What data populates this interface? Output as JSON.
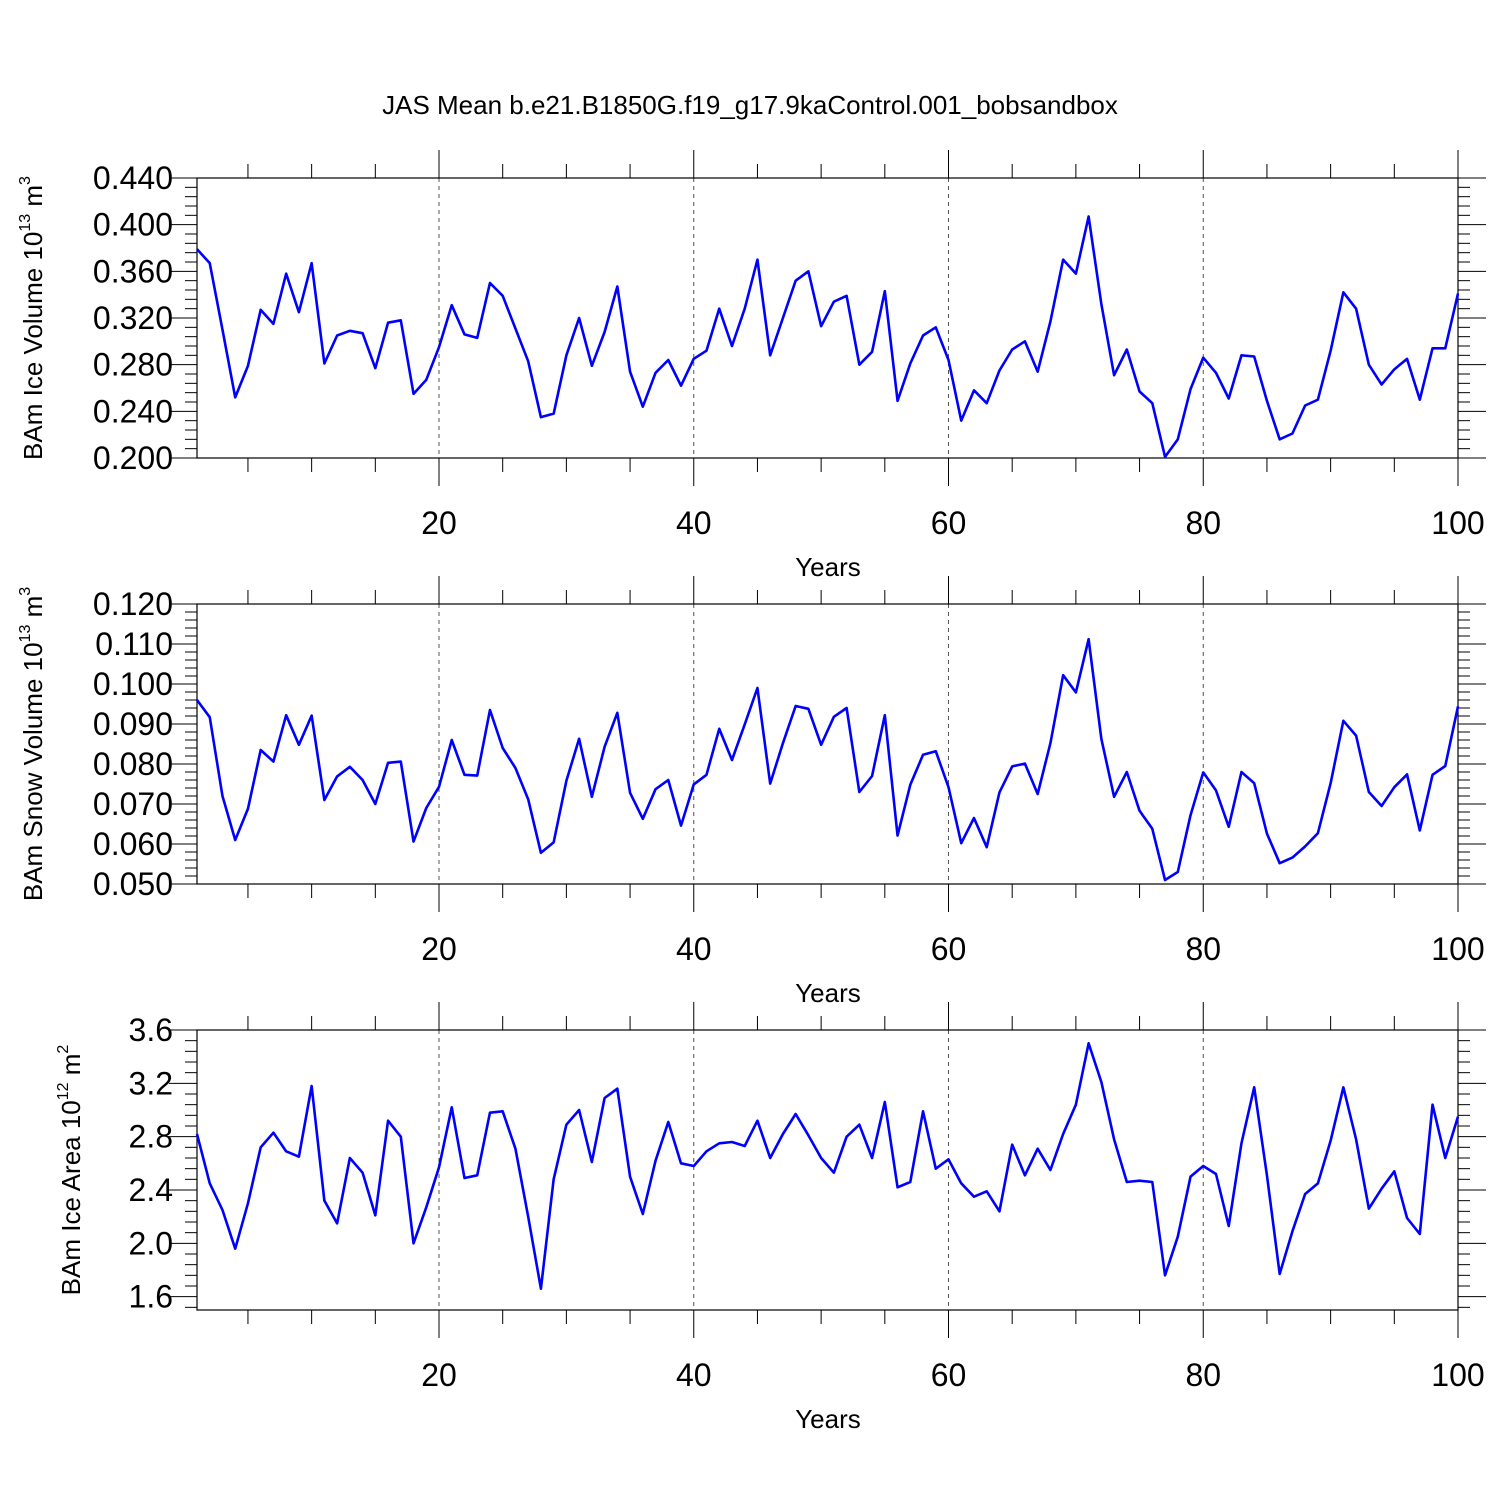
{
  "title": "JAS Mean b.e21.B1850G.f19_g17.9kaControl.001_bobsandbox",
  "colors": {
    "line": "#0000ff",
    "axis": "#000000",
    "grid": "#555555"
  },
  "chart_data": [
    {
      "type": "line",
      "ylabel": {
        "text": "BAm Ice Volume 10",
        "exp": "13",
        "unit": " m",
        "unit_exp": "3"
      },
      "xlabel": "Years",
      "xlim": [
        1,
        100
      ],
      "x_ticks": [
        "20",
        "40",
        "60",
        "80",
        "100"
      ],
      "ylim": [
        0.2,
        0.44
      ],
      "y_ticks": [
        "0.200",
        "0.240",
        "0.280",
        "0.320",
        "0.360",
        "0.400",
        "0.440"
      ],
      "grid": "vertical dashed",
      "series": [
        {
          "name": "BAm Ice Volume",
          "values": [
            0.379,
            0.367,
            0.31,
            0.252,
            0.279,
            0.327,
            0.315,
            0.358,
            0.325,
            0.367,
            0.281,
            0.305,
            0.309,
            0.307,
            0.277,
            0.316,
            0.318,
            0.255,
            0.267,
            0.295,
            0.331,
            0.306,
            0.303,
            0.35,
            0.339,
            0.311,
            0.283,
            0.235,
            0.238,
            0.288,
            0.32,
            0.279,
            0.308,
            0.347,
            0.274,
            0.244,
            0.273,
            0.284,
            0.262,
            0.285,
            0.292,
            0.328,
            0.296,
            0.328,
            0.37,
            0.288,
            0.32,
            0.352,
            0.36,
            0.313,
            0.334,
            0.339,
            0.28,
            0.291,
            0.343,
            0.249,
            0.281,
            0.305,
            0.312,
            0.284,
            0.232,
            0.258,
            0.247,
            0.275,
            0.293,
            0.3,
            0.274,
            0.317,
            0.37,
            0.358,
            0.407,
            0.332,
            0.271,
            0.293,
            0.257,
            0.247,
            0.201,
            0.216,
            0.259,
            0.286,
            0.273,
            0.251,
            0.288,
            0.287,
            0.249,
            0.216,
            0.221,
            0.245,
            0.25,
            0.292,
            0.342,
            0.328,
            0.28,
            0.263,
            0.276,
            0.285,
            0.25,
            0.294,
            0.294,
            0.341
          ]
        }
      ]
    },
    {
      "type": "line",
      "ylabel": {
        "text": "BAm Snow Volume 10",
        "exp": "13",
        "unit": " m",
        "unit_exp": "3"
      },
      "xlabel": "Years",
      "xlim": [
        1,
        100
      ],
      "x_ticks": [
        "20",
        "40",
        "60",
        "80",
        "100"
      ],
      "ylim": [
        0.05,
        0.12
      ],
      "y_ticks": [
        "0.050",
        "0.060",
        "0.070",
        "0.080",
        "0.090",
        "0.100",
        "0.110",
        "0.120"
      ],
      "grid": "vertical dashed",
      "series": [
        {
          "name": "BAm Snow Volume",
          "values": [
            0.096,
            0.0917,
            0.072,
            0.061,
            0.0688,
            0.0835,
            0.0806,
            0.0922,
            0.0848,
            0.0921,
            0.071,
            0.0769,
            0.0793,
            0.076,
            0.07,
            0.0803,
            0.0806,
            0.0606,
            0.069,
            0.0743,
            0.086,
            0.0773,
            0.0771,
            0.0935,
            0.084,
            0.079,
            0.0712,
            0.0578,
            0.0604,
            0.0758,
            0.0863,
            0.0718,
            0.0843,
            0.0928,
            0.0728,
            0.0663,
            0.0737,
            0.076,
            0.0646,
            0.0749,
            0.0773,
            0.0888,
            0.081,
            0.0899,
            0.099,
            0.0751,
            0.0852,
            0.0945,
            0.0938,
            0.0848,
            0.0918,
            0.094,
            0.073,
            0.077,
            0.0922,
            0.0621,
            0.0748,
            0.0823,
            0.0832,
            0.0742,
            0.0602,
            0.0665,
            0.0592,
            0.0729,
            0.0794,
            0.0801,
            0.0725,
            0.0852,
            0.1022,
            0.0979,
            0.1112,
            0.0863,
            0.0718,
            0.078,
            0.0683,
            0.0638,
            0.051,
            0.053,
            0.0672,
            0.0779,
            0.0734,
            0.0643,
            0.078,
            0.0752,
            0.0626,
            0.0552,
            0.0566,
            0.0594,
            0.0627,
            0.0752,
            0.0908,
            0.0871,
            0.073,
            0.0695,
            0.0742,
            0.0774,
            0.0634,
            0.0773,
            0.0795,
            0.0944
          ]
        }
      ]
    },
    {
      "type": "line",
      "ylabel": {
        "text": "BAm Ice Area 10",
        "exp": "12",
        "unit": " m",
        "unit_exp": "2"
      },
      "xlabel": "Years",
      "xlim": [
        1,
        100
      ],
      "x_ticks": [
        "20",
        "40",
        "60",
        "80",
        "100"
      ],
      "ylim": [
        1.5,
        3.6
      ],
      "y_ticks": [
        "1.6",
        "2.0",
        "2.4",
        "2.8",
        "3.2",
        "3.6"
      ],
      "grid": "vertical dashed",
      "series": [
        {
          "name": "BAm Ice Area",
          "values": [
            2.82,
            2.45,
            2.25,
            1.96,
            2.3,
            2.72,
            2.83,
            2.69,
            2.65,
            3.18,
            2.32,
            2.15,
            2.64,
            2.53,
            2.21,
            2.92,
            2.8,
            2.0,
            2.27,
            2.57,
            3.02,
            2.49,
            2.51,
            2.98,
            2.99,
            2.71,
            2.2,
            1.66,
            2.48,
            2.89,
            3.0,
            2.61,
            3.09,
            3.16,
            2.5,
            2.22,
            2.62,
            2.91,
            2.6,
            2.58,
            2.69,
            2.75,
            2.76,
            2.73,
            2.92,
            2.64,
            2.82,
            2.97,
            2.81,
            2.64,
            2.53,
            2.8,
            2.89,
            2.64,
            3.06,
            2.42,
            2.46,
            2.99,
            2.56,
            2.63,
            2.45,
            2.35,
            2.39,
            2.24,
            2.74,
            2.51,
            2.71,
            2.55,
            2.82,
            3.04,
            3.5,
            3.21,
            2.78,
            2.46,
            2.47,
            2.46,
            1.76,
            2.05,
            2.5,
            2.58,
            2.52,
            2.13,
            2.75,
            3.17,
            2.51,
            1.77,
            2.09,
            2.37,
            2.45,
            2.77,
            3.17,
            2.78,
            2.26,
            2.41,
            2.54,
            2.19,
            2.07,
            3.04,
            2.64,
            2.95
          ]
        }
      ]
    }
  ]
}
